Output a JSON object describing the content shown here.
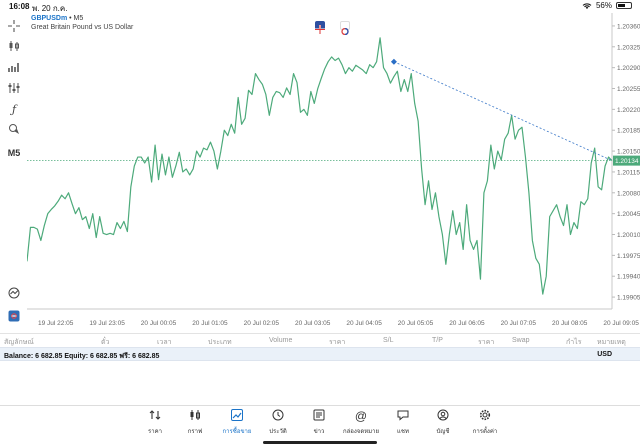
{
  "status": {
    "time": "16:08",
    "date": "พ. 20 ก.ค.",
    "battery": "56%"
  },
  "chart": {
    "symbol": "GBPUSDm",
    "timeframe": "M5",
    "description": "Great Britain Pound vs US Dollar",
    "timeframe_label": "M5",
    "current_price": "1.20134",
    "line_color": "#4daa7b",
    "price_line_color": "#4daa7b",
    "trade_line_color": "#3b78c8"
  },
  "chart_data": {
    "type": "line",
    "y_ticks": [
      "1.20360",
      "1.20325",
      "1.20290",
      "1.20255",
      "1.20220",
      "1.20185",
      "1.20150",
      "1.20115",
      "1.20080",
      "1.20045",
      "1.20010",
      "1.19975",
      "1.19940",
      "1.19905"
    ],
    "x_ticks": [
      "19 Jul 22:05",
      "19 Jul 23:05",
      "20 Jul 00:05",
      "20 Jul 01:05",
      "20 Jul 02:05",
      "20 Jul 03:05",
      "20 Jul 04:05",
      "20 Jul 05:05",
      "20 Jul 06:05",
      "20 Jul 07:05",
      "20 Jul 08:05",
      "20 Jul 09:05"
    ],
    "ylim": [
      1.19885,
      1.20375
    ],
    "values": [
      1.19965,
      1.20022,
      1.20022,
      1.20019,
      1.2,
      1.20025,
      1.20045,
      1.20052,
      1.20058,
      1.20066,
      1.20076,
      1.2007,
      1.2008,
      1.20062,
      1.20045,
      1.20055,
      1.20035,
      1.2004,
      1.2002,
      1.20045,
      1.20005,
      1.2004,
      1.20012,
      1.2001,
      1.20012,
      1.2001,
      1.2003,
      1.2002,
      1.20032,
      1.20015,
      1.2009,
      1.20125,
      1.2014,
      1.2014,
      1.2013,
      1.2014,
      1.20098,
      1.2016,
      1.20102,
      1.20145,
      1.2011,
      1.2014,
      1.20106,
      1.20125,
      1.20148,
      1.20115,
      1.2012,
      1.2011,
      1.2012,
      1.2015,
      1.2014,
      1.20155,
      1.20152,
      1.20165,
      1.2015,
      1.2012,
      1.2015,
      1.20185,
      1.20176,
      1.20195,
      1.2018,
      1.2024,
      1.20195,
      1.20205,
      1.20252,
      1.20245,
      1.2028,
      1.2027,
      1.20262,
      1.20245,
      1.2021,
      1.2024,
      1.2025,
      1.20248,
      1.2024,
      1.20256,
      1.20245,
      1.2028,
      1.20265,
      1.20215,
      1.2022,
      1.2021,
      1.2025,
      1.2023,
      1.20255,
      1.20272,
      1.20288,
      1.203,
      1.20308,
      1.20302,
      1.20306,
      1.20295,
      1.2028,
      1.2029,
      1.20284,
      1.20294,
      1.2029,
      1.20286,
      1.2028,
      1.20295,
      1.2029,
      1.203,
      1.2034,
      1.2029,
      1.2028,
      1.20264,
      1.20275,
      1.20284,
      1.2025,
      1.2027,
      1.2025,
      1.2028,
      1.2023,
      1.202,
      1.2012,
      1.2006,
      1.201,
      1.20052,
      1.2008,
      1.2004,
      1.2001,
      1.1996,
      1.2001,
      1.2005,
      1.2001,
      1.2003,
      1.19985,
      1.2006,
      1.2,
      1.19985,
      1.2,
      1.19935,
      1.2008,
      1.201,
      1.2016,
      1.2012,
      1.2015,
      1.20135,
      1.2017,
      1.2018,
      1.2021,
      1.2017,
      1.20185,
      1.2019,
      1.2014,
      1.2008,
      1.2,
      1.1997,
      1.1996,
      1.1991,
      1.1994,
      1.2004,
      1.2005,
      1.2006,
      1.2004,
      1.20025,
      1.2006,
      1.2001,
      1.2003,
      1.2002,
      1.20065,
      1.2006,
      1.2007,
      1.2013,
      1.20155,
      1.2009,
      1.20085,
      1.20125,
      1.2014,
      1.20134
    ],
    "markers": [
      {
        "index": 106,
        "value": 1.203,
        "kind": "entry"
      }
    ],
    "grid": false,
    "xlabel": "",
    "ylabel": ""
  },
  "columns": [
    "สัญลักษณ์",
    "ตั๋ว",
    "เวลา",
    "ประเภท",
    "Volume",
    "ราคา",
    "S/L",
    "T/P",
    "ราคา",
    "Swap",
    "กำไร",
    "หมายเหตุ"
  ],
  "account": {
    "text": "Balance: 6 682.85 Equity: 6 682.85 ฟรี: 6 682.85",
    "currency": "USD"
  },
  "tabs": [
    {
      "label": "ราคา",
      "icon": "quotes-icon"
    },
    {
      "label": "กราฟ",
      "icon": "chart-icon"
    },
    {
      "label": "การซื้อขาย",
      "icon": "trade-icon",
      "active": true
    },
    {
      "label": "ประวัติ",
      "icon": "history-icon"
    },
    {
      "label": "ข่าว",
      "icon": "news-icon"
    },
    {
      "label": "กล่องจดหมาย",
      "icon": "mail-icon"
    },
    {
      "label": "แชท",
      "icon": "chat-icon"
    },
    {
      "label": "บัญชี",
      "icon": "account-icon"
    },
    {
      "label": "การตั้งค่า",
      "icon": "settings-icon"
    }
  ]
}
